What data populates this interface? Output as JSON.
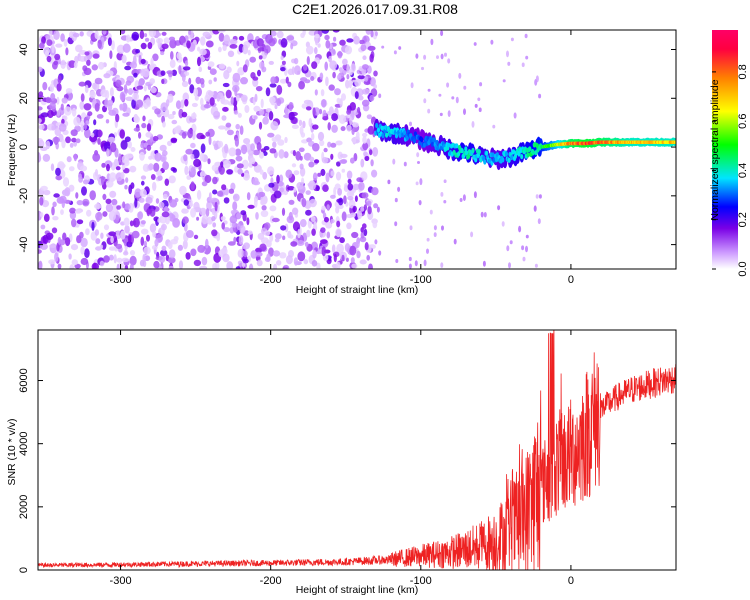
{
  "title": "C2E1.2026.017.09.31.R08",
  "chart_data": [
    {
      "type": "heatmap",
      "xlabel": "Height of straight line (km)",
      "ylabel": "Frequency (Hz)",
      "xlim": [
        -355,
        70
      ],
      "ylim": [
        -50,
        48
      ],
      "xticks": [
        -300,
        -200,
        -100,
        0
      ],
      "yticks": [
        -40,
        -20,
        0,
        20,
        40
      ],
      "colorbar": {
        "label": "Normalized spectral amplitude",
        "range": [
          0.0,
          0.97
        ],
        "ticks": [
          0.0,
          0.2,
          0.4,
          0.6,
          0.8
        ],
        "colors": [
          "#ffffff",
          "#cc99ff",
          "#7a00e6",
          "#0000ff",
          "#00e5ff",
          "#00ff00",
          "#ffff00",
          "#ff8000",
          "#ff0040"
        ]
      },
      "signal_track": {
        "x": [
          -130,
          -120,
          -110,
          -100,
          -90,
          -80,
          -70,
          -60,
          -50,
          -40,
          -30,
          -20,
          -10,
          0,
          10,
          20,
          30,
          40,
          50,
          60,
          70
        ],
        "y": [
          7,
          6,
          5,
          3,
          1,
          -1,
          -2,
          -4,
          -5,
          -4,
          -2,
          0,
          1,
          1.5,
          1.5,
          2,
          2,
          2,
          2,
          2,
          2
        ],
        "amplitude": [
          0.35,
          0.4,
          0.35,
          0.3,
          0.35,
          0.4,
          0.45,
          0.4,
          0.35,
          0.4,
          0.45,
          0.5,
          0.65,
          0.85,
          0.9,
          0.85,
          0.8,
          0.75,
          0.75,
          0.75,
          0.75
        ]
      },
      "noise_region_x": [
        -355,
        -130
      ]
    },
    {
      "type": "line",
      "xlabel": "Height of straight line (km)",
      "ylabel": "SNR (10 * v/v)",
      "xlim": [
        -355,
        70
      ],
      "ylim": [
        0,
        7600
      ],
      "xticks": [
        -300,
        -200,
        -100,
        0
      ],
      "yticks": [
        0,
        2000,
        4000,
        6000
      ],
      "color": "#ee2222",
      "series": [
        {
          "x": [
            -355,
            -300,
            -250,
            -200,
            -150,
            -120,
            -100,
            -90,
            -80,
            -70,
            -60,
            -50,
            -40,
            -30,
            -25,
            -20,
            -15,
            -10,
            -5,
            0,
            5,
            10,
            15,
            20,
            30,
            40,
            50,
            60,
            70
          ],
          "y": [
            150,
            170,
            200,
            220,
            260,
            330,
            450,
            500,
            560,
            650,
            760,
            950,
            1250,
            1700,
            2100,
            2600,
            3000,
            3300,
            3500,
            3650,
            3900,
            4300,
            4700,
            5100,
            5450,
            5700,
            5850,
            5980,
            6080
          ]
        }
      ]
    }
  ]
}
